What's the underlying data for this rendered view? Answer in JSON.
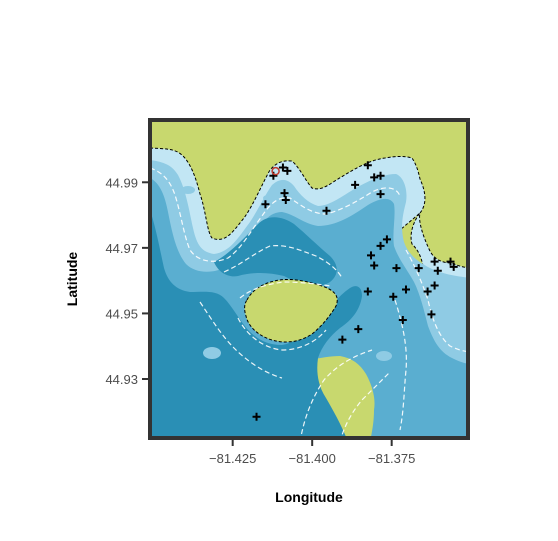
{
  "chart_data": {
    "type": "map",
    "title": "",
    "xlabel": "Longitude",
    "ylabel": "Latitude",
    "xlim": [
      -81.451,
      -81.351
    ],
    "ylim": [
      44.912,
      45.009
    ],
    "x_ticks": [
      {
        "value": -81.425,
        "label": "−81.425"
      },
      {
        "value": -81.4,
        "label": "−81.400"
      },
      {
        "value": -81.375,
        "label": "−81.375"
      }
    ],
    "y_ticks": [
      {
        "value": 44.93,
        "label": "44.93"
      },
      {
        "value": 44.95,
        "label": "44.95"
      },
      {
        "value": 44.97,
        "label": "44.97"
      },
      {
        "value": 44.99,
        "label": "44.99"
      }
    ],
    "colors": {
      "land": "#c8d86e",
      "deep_water": "#2a8fb5",
      "mid_water": "#5aaed0",
      "shallow_water": "#8fcbe4",
      "shore_water": "#c2e6f4",
      "contour": "#ffffff",
      "frame": "#333333"
    },
    "sites": [
      {
        "lon": -81.4092,
        "lat": 44.9945
      },
      {
        "lon": -81.4078,
        "lat": 44.9935
      },
      {
        "lon": -81.4122,
        "lat": 44.992
      },
      {
        "lon": -81.4087,
        "lat": 44.9867
      },
      {
        "lon": -81.4083,
        "lat": 44.9846
      },
      {
        "lon": -81.4147,
        "lat": 44.9833
      },
      {
        "lon": -81.3955,
        "lat": 44.9813
      },
      {
        "lon": -81.3865,
        "lat": 44.9892
      },
      {
        "lon": -81.3825,
        "lat": 44.9952
      },
      {
        "lon": -81.3805,
        "lat": 44.9915
      },
      {
        "lon": -81.3785,
        "lat": 44.992
      },
      {
        "lon": -81.3785,
        "lat": 44.9864
      },
      {
        "lon": -81.3765,
        "lat": 44.9726
      },
      {
        "lon": -81.3785,
        "lat": 44.9706
      },
      {
        "lon": -81.3815,
        "lat": 44.9677
      },
      {
        "lon": -81.3805,
        "lat": 44.9646
      },
      {
        "lon": -81.3735,
        "lat": 44.9638
      },
      {
        "lon": -81.3665,
        "lat": 44.9638
      },
      {
        "lon": -81.3615,
        "lat": 44.9658
      },
      {
        "lon": -81.3565,
        "lat": 44.9658
      },
      {
        "lon": -81.3555,
        "lat": 44.9642
      },
      {
        "lon": -81.3605,
        "lat": 44.963
      },
      {
        "lon": -81.3615,
        "lat": 44.9585
      },
      {
        "lon": -81.3637,
        "lat": 44.9567
      },
      {
        "lon": -81.3825,
        "lat": 44.9567
      },
      {
        "lon": -81.3745,
        "lat": 44.9551
      },
      {
        "lon": -81.3705,
        "lat": 44.9573
      },
      {
        "lon": -81.3625,
        "lat": 44.9497
      },
      {
        "lon": -81.3715,
        "lat": 44.948
      },
      {
        "lon": -81.3855,
        "lat": 44.9452
      },
      {
        "lon": -81.3905,
        "lat": 44.942
      },
      {
        "lon": -81.4175,
        "lat": 44.9185
      }
    ],
    "highlighted_site": {
      "lon": -81.4115,
      "lat": 44.9934
    }
  }
}
